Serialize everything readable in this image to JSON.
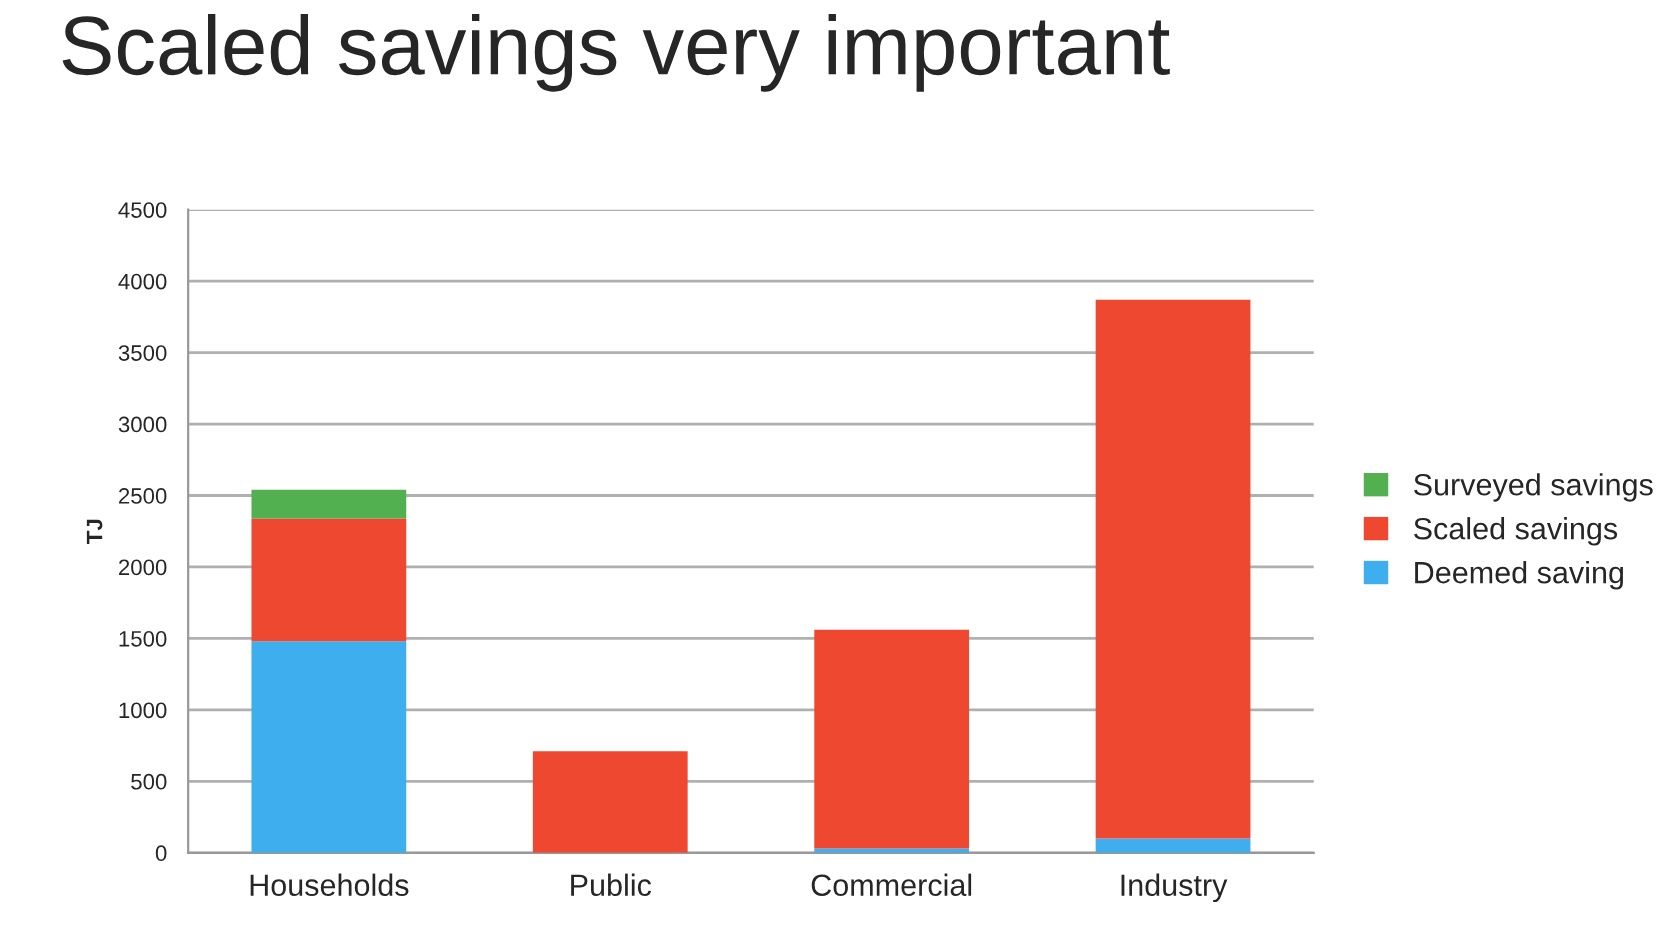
{
  "chart_data": {
    "type": "bar",
    "title": "Scaled savings very important",
    "ylabel": "TJ",
    "categories": [
      "Households",
      "Public",
      "Commercial",
      "Industry"
    ],
    "stacked": true,
    "series": [
      {
        "name": "Deemed saving",
        "color": "#3eaeee",
        "values": [
          1480,
          null,
          30,
          100
        ]
      },
      {
        "name": "Scaled savings",
        "color": "#ee4831",
        "values": [
          860,
          710,
          1530,
          3770
        ]
      },
      {
        "name": "Surveyed savings",
        "color": "#52b050",
        "values": [
          200,
          null,
          null,
          null
        ]
      }
    ],
    "ylim": [
      0,
      4500
    ],
    "yticks": [
      0,
      500,
      1000,
      1500,
      2000,
      2500,
      3000,
      3500,
      4000,
      4500
    ],
    "grid": "y",
    "legend": "right"
  }
}
